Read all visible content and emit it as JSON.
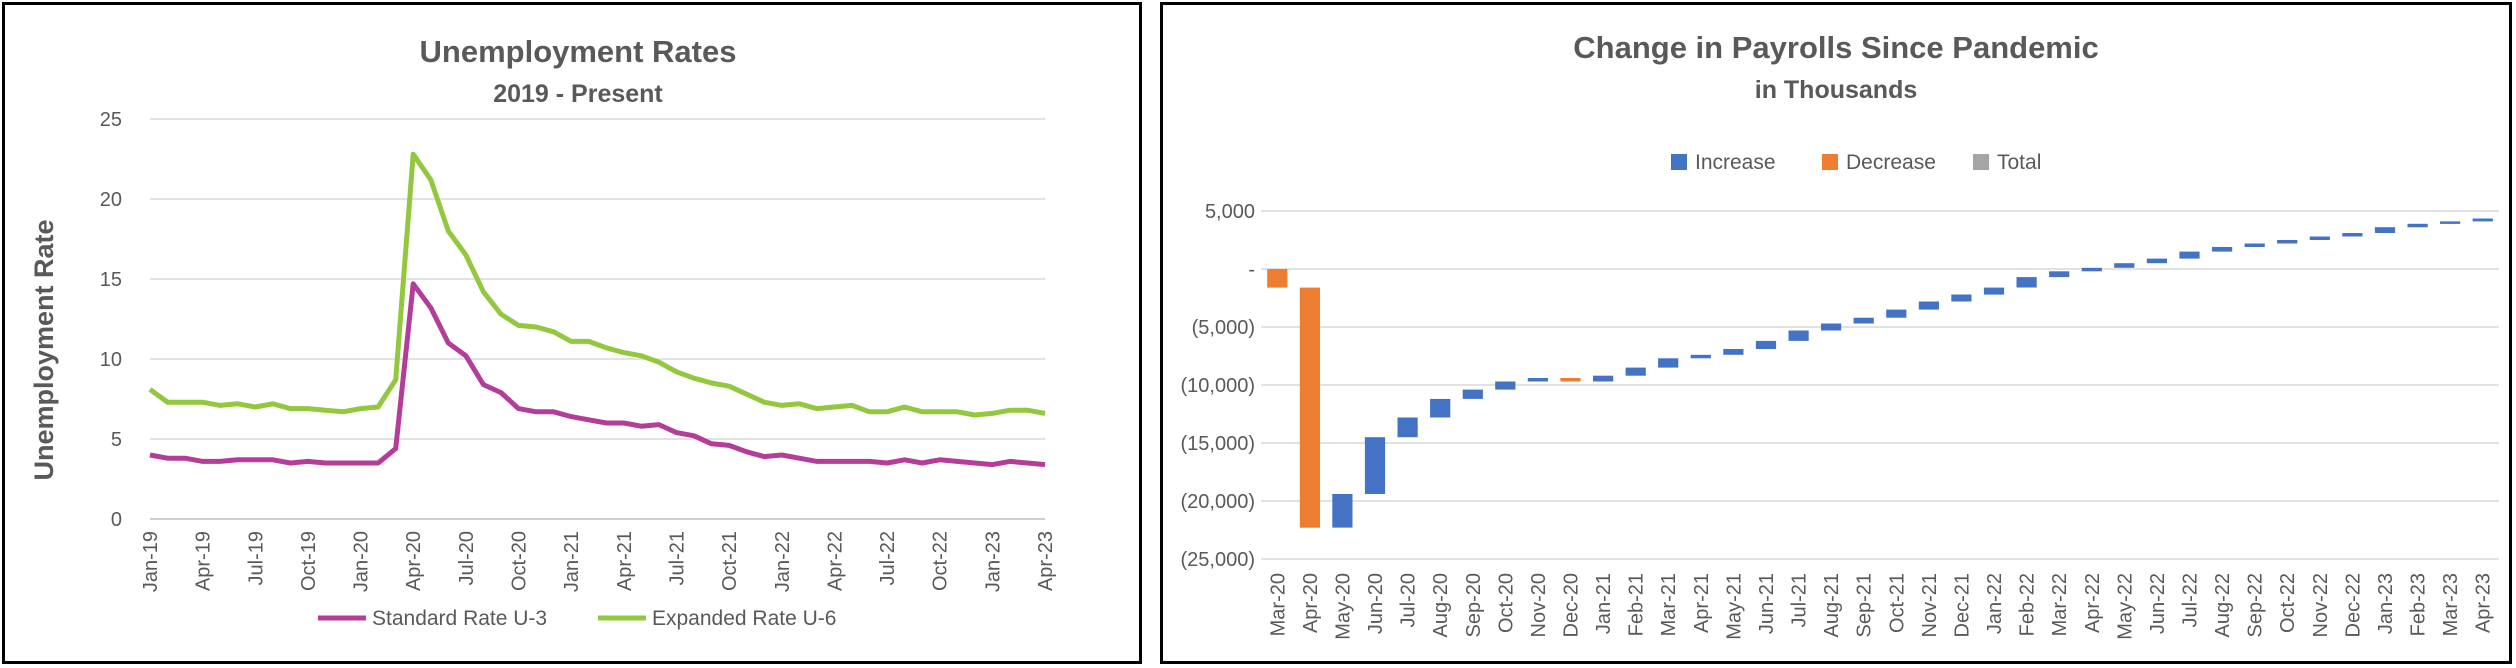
{
  "chart_data": [
    {
      "type": "line",
      "title": "Unemployment Rates",
      "subtitle": "2019 - Present",
      "xlabel": "",
      "ylabel": "Unemployment Rate",
      "ylim": [
        0,
        25
      ],
      "yticks": [
        "0",
        "5",
        "10",
        "15",
        "20",
        "25"
      ],
      "grid": true,
      "legend_position": "bottom",
      "xtick_labels": [
        "Jan-19",
        "Apr-19",
        "Jul-19",
        "Oct-19",
        "Jan-20",
        "Apr-20",
        "Jul-20",
        "Oct-20",
        "Jan-21",
        "Apr-21",
        "Jul-21",
        "Oct-21",
        "Jan-22",
        "Apr-22",
        "Jul-22",
        "Oct-22",
        "Jan-23",
        "Apr-23"
      ],
      "series": [
        {
          "name": "Standard Rate U-3",
          "color": "#b43d9a",
          "values": [
            4.0,
            3.8,
            3.8,
            3.6,
            3.6,
            3.7,
            3.7,
            3.7,
            3.5,
            3.6,
            3.5,
            3.5,
            3.5,
            3.5,
            4.4,
            14.7,
            13.2,
            11.0,
            10.2,
            8.4,
            7.9,
            6.9,
            6.7,
            6.7,
            6.4,
            6.2,
            6.0,
            6.0,
            5.8,
            5.9,
            5.4,
            5.2,
            4.7,
            4.6,
            4.2,
            3.9,
            4.0,
            3.8,
            3.6,
            3.6,
            3.6,
            3.6,
            3.5,
            3.7,
            3.5,
            3.7,
            3.6,
            3.5,
            3.4,
            3.6,
            3.5,
            3.4
          ]
        },
        {
          "name": "Expanded Rate U-6",
          "color": "#92c83e",
          "values": [
            8.1,
            7.3,
            7.3,
            7.3,
            7.1,
            7.2,
            7.0,
            7.2,
            6.9,
            6.9,
            6.8,
            6.7,
            6.9,
            7.0,
            8.7,
            22.8,
            21.2,
            18.0,
            16.5,
            14.2,
            12.8,
            12.1,
            12.0,
            11.7,
            11.1,
            11.1,
            10.7,
            10.4,
            10.2,
            9.8,
            9.2,
            8.8,
            8.5,
            8.3,
            7.8,
            7.3,
            7.1,
            7.2,
            6.9,
            7.0,
            7.1,
            6.7,
            6.7,
            7.0,
            6.7,
            6.7,
            6.7,
            6.5,
            6.6,
            6.8,
            6.8,
            6.6
          ]
        }
      ]
    },
    {
      "type": "bar",
      "subtype": "waterfall",
      "title": "Change in Payrolls Since Pandemic",
      "subtitle": "in Thousands",
      "xlabel": "",
      "ylabel": "",
      "ylim": [
        -25000,
        5000
      ],
      "yticks": [
        "5,000",
        "-",
        "(5,000)",
        "(10,000)",
        "(15,000)",
        "(20,000)",
        "(25,000)"
      ],
      "grid": true,
      "legend_position": "top",
      "legend": [
        {
          "name": "Increase",
          "color": "#4472c4"
        },
        {
          "name": "Decrease",
          "color": "#ed7d31"
        },
        {
          "name": "Total",
          "color": "#a5a5a5"
        }
      ],
      "categories": [
        "Mar-20",
        "Apr-20",
        "May-20",
        "Jun-20",
        "Jul-20",
        "Aug-20",
        "Sep-20",
        "Oct-20",
        "Nov-20",
        "Dec-20",
        "Jan-21",
        "Feb-21",
        "Mar-21",
        "Apr-21",
        "May-21",
        "Jun-21",
        "Jul-21",
        "Aug-21",
        "Sep-21",
        "Oct-21",
        "Nov-21",
        "Dec-21",
        "Jan-22",
        "Feb-22",
        "Mar-22",
        "Apr-22",
        "May-22",
        "Jun-22",
        "Jul-22",
        "Aug-22",
        "Sep-22",
        "Oct-22",
        "Nov-22",
        "Dec-22",
        "Jan-23",
        "Feb-23",
        "Mar-23",
        "Apr-23"
      ],
      "changes": [
        -1600,
        -20700,
        2900,
        4900,
        1700,
        1600,
        800,
        700,
        300,
        -300,
        500,
        700,
        800,
        300,
        500,
        700,
        900,
        600,
        500,
        700,
        700,
        600,
        600,
        900,
        500,
        300,
        400,
        400,
        600,
        400,
        300,
        300,
        300,
        300,
        500,
        300,
        200,
        250
      ]
    }
  ]
}
